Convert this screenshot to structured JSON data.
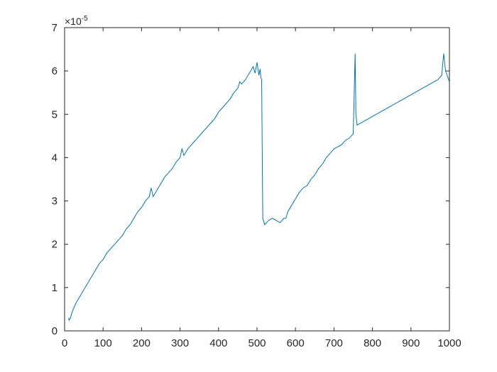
{
  "chart_data": {
    "type": "line",
    "title": "",
    "xlabel": "",
    "ylabel": "",
    "xlim": [
      0,
      1000
    ],
    "ylim": [
      0,
      7
    ],
    "y_exponent_label": "×10",
    "y_exponent_power": "-5",
    "grid": false,
    "legend": "none",
    "line_color": "#0072BD",
    "x_ticks": [
      0,
      100,
      200,
      300,
      400,
      500,
      600,
      700,
      800,
      900,
      1000
    ],
    "x_tick_labels": [
      "0",
      "100",
      "200",
      "300",
      "400",
      "500",
      "600",
      "700",
      "800",
      "900",
      "1000"
    ],
    "y_ticks": [
      0,
      1,
      2,
      3,
      4,
      5,
      6,
      7
    ],
    "y_tick_labels": [
      "0",
      "1",
      "2",
      "3",
      "4",
      "5",
      "6",
      "7"
    ],
    "series": [
      {
        "x": [
          10,
          12,
          15,
          20,
          25,
          30,
          40,
          50,
          60,
          70,
          80,
          90,
          100,
          110,
          120,
          130,
          140,
          150,
          160,
          170,
          180,
          190,
          200,
          210,
          220,
          225,
          230,
          240,
          250,
          260,
          270,
          280,
          290,
          300,
          305,
          310,
          320,
          330,
          340,
          350,
          360,
          370,
          380,
          390,
          400,
          410,
          420,
          430,
          440,
          450,
          455,
          460,
          470,
          480,
          490,
          495,
          500,
          505,
          508,
          510,
          512,
          515,
          520,
          530,
          540,
          550,
          560,
          570,
          575,
          580,
          590,
          600,
          610,
          620,
          630,
          640,
          650,
          660,
          670,
          680,
          690,
          700,
          710,
          720,
          730,
          740,
          750,
          755,
          757,
          760,
          770,
          780,
          790,
          800,
          810,
          820,
          830,
          840,
          850,
          860,
          870,
          880,
          890,
          900,
          910,
          920,
          930,
          940,
          950,
          960,
          970,
          975,
          980,
          985,
          990,
          1000
        ],
        "y": [
          0.3,
          0.25,
          0.3,
          0.45,
          0.55,
          0.65,
          0.8,
          0.95,
          1.1,
          1.25,
          1.4,
          1.55,
          1.65,
          1.8,
          1.9,
          2.0,
          2.1,
          2.2,
          2.35,
          2.45,
          2.6,
          2.75,
          2.85,
          3.0,
          3.1,
          3.3,
          3.1,
          3.25,
          3.4,
          3.55,
          3.65,
          3.75,
          3.9,
          4.0,
          4.2,
          4.05,
          4.2,
          4.3,
          4.4,
          4.5,
          4.6,
          4.7,
          4.8,
          4.9,
          5.05,
          5.15,
          5.25,
          5.35,
          5.5,
          5.6,
          5.75,
          5.7,
          5.8,
          5.95,
          6.1,
          5.95,
          6.2,
          5.9,
          6.05,
          5.85,
          5.8,
          2.6,
          2.45,
          2.55,
          2.6,
          2.55,
          2.5,
          2.6,
          2.6,
          2.75,
          2.9,
          3.05,
          3.2,
          3.3,
          3.35,
          3.5,
          3.6,
          3.75,
          3.85,
          4.0,
          4.1,
          4.2,
          4.25,
          4.3,
          4.4,
          4.45,
          4.55,
          6.4,
          5.0,
          4.75,
          4.8,
          4.85,
          4.9,
          4.95,
          5.0,
          5.05,
          5.1,
          5.15,
          5.2,
          5.25,
          5.3,
          5.35,
          5.4,
          5.45,
          5.5,
          5.55,
          5.6,
          5.65,
          5.7,
          5.75,
          5.8,
          5.85,
          5.9,
          6.4,
          6.0,
          5.75
        ]
      }
    ]
  }
}
